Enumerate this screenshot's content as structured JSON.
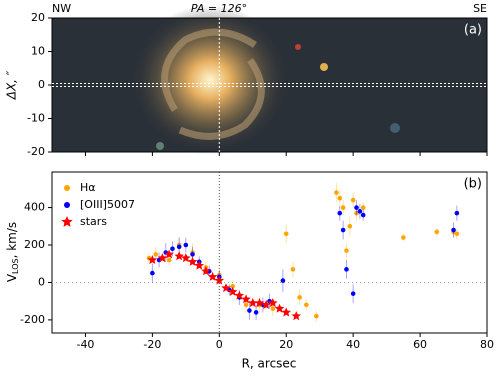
{
  "chart_data": [
    {
      "type": "image",
      "corner_left": "NW",
      "corner_right": "SE",
      "title": "PA = 126°",
      "panel_label": "(a)",
      "ylabel": "ΔX, ″",
      "ylim": [
        -20,
        20
      ],
      "yticks": [
        -20,
        -10,
        0,
        10,
        20
      ]
    },
    {
      "type": "scatter",
      "panel_label": "(b)",
      "xlabel": "R, arcsec",
      "ylabel": [
        "V",
        "LOS",
        ", km/s"
      ],
      "xlim": [
        -50,
        80
      ],
      "xticks": [
        -40,
        -20,
        0,
        20,
        40,
        60,
        80
      ],
      "ylim": [
        -270,
        590
      ],
      "yticks": [
        -200,
        0,
        200,
        400
      ],
      "legend": "upper left",
      "zero_lines": true,
      "series": [
        {
          "name": "Hα",
          "color": "#ffa500",
          "marker": "circle",
          "x": [
            -21,
            -19,
            -15,
            -12,
            -8,
            -4,
            0,
            4,
            8,
            12,
            16,
            20,
            22,
            24,
            26,
            29,
            35,
            36,
            37,
            38,
            39,
            40,
            41,
            43,
            55,
            65,
            70,
            71
          ],
          "values": [
            130,
            150,
            120,
            200,
            160,
            80,
            40,
            -20,
            -120,
            -120,
            -140,
            260,
            70,
            -80,
            -120,
            -180,
            480,
            450,
            400,
            170,
            300,
            440,
            370,
            400,
            240,
            270,
            270,
            260
          ],
          "errors": [
            30,
            40,
            30,
            40,
            50,
            30,
            30,
            30,
            40,
            40,
            40,
            50,
            40,
            40,
            30,
            30,
            50,
            40,
            40,
            40,
            50,
            40,
            40,
            30,
            20,
            20,
            30,
            30
          ]
        },
        {
          "name": "[OIII]5007",
          "color": "#0000ff",
          "marker": "circle",
          "x": [
            -20,
            -18,
            -16,
            -14,
            -12,
            -10,
            -8,
            -6,
            -3,
            0,
            3,
            6,
            9,
            11,
            13,
            15,
            19,
            36,
            37,
            38,
            40,
            41,
            42,
            43,
            70,
            71
          ],
          "values": [
            50,
            120,
            160,
            180,
            190,
            200,
            150,
            110,
            60,
            30,
            -40,
            -80,
            -150,
            -160,
            -120,
            -100,
            10,
            370,
            280,
            70,
            -60,
            400,
            380,
            360,
            280,
            370
          ],
          "errors": [
            50,
            40,
            50,
            40,
            50,
            40,
            40,
            30,
            30,
            30,
            30,
            40,
            50,
            40,
            40,
            40,
            60,
            40,
            50,
            50,
            50,
            40,
            40,
            30,
            40,
            40
          ]
        },
        {
          "name": "stars",
          "color": "#ff0000",
          "marker": "star",
          "x": [
            -20,
            -17,
            -15,
            -12,
            -10,
            -8,
            -6,
            -4,
            -2,
            0,
            2,
            4,
            6,
            8,
            10,
            12,
            14,
            16,
            18,
            20,
            23
          ],
          "values": [
            120,
            130,
            150,
            140,
            130,
            110,
            90,
            60,
            30,
            10,
            -30,
            -50,
            -70,
            -90,
            -110,
            -110,
            -120,
            -110,
            -140,
            -160,
            -180
          ]
        }
      ]
    }
  ]
}
